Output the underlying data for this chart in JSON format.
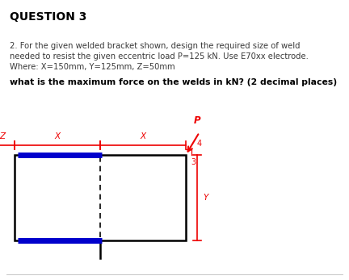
{
  "title": "QUESTION 3",
  "line1": "2. For the given welded bracket shown, design the required size of weld",
  "line2": "needed to resist the given eccentric load P=125 kN. Use E70xx electrode.",
  "line3": "Where: X=150mm, Y=125mm, Z=50mm",
  "question": "what is the maximum force on the welds in kN? (2 decimal places)",
  "bg_color": "#ffffff",
  "text_color": "#3a3a3a",
  "red_color": "#ee0000",
  "blue_color": "#0000cc",
  "black_color": "#000000",
  "Z_label": "Z",
  "X_label1": "X",
  "X_label2": "X",
  "Y_label": "Y",
  "P_label": "P",
  "num3_label": "3",
  "num4_label": "4"
}
